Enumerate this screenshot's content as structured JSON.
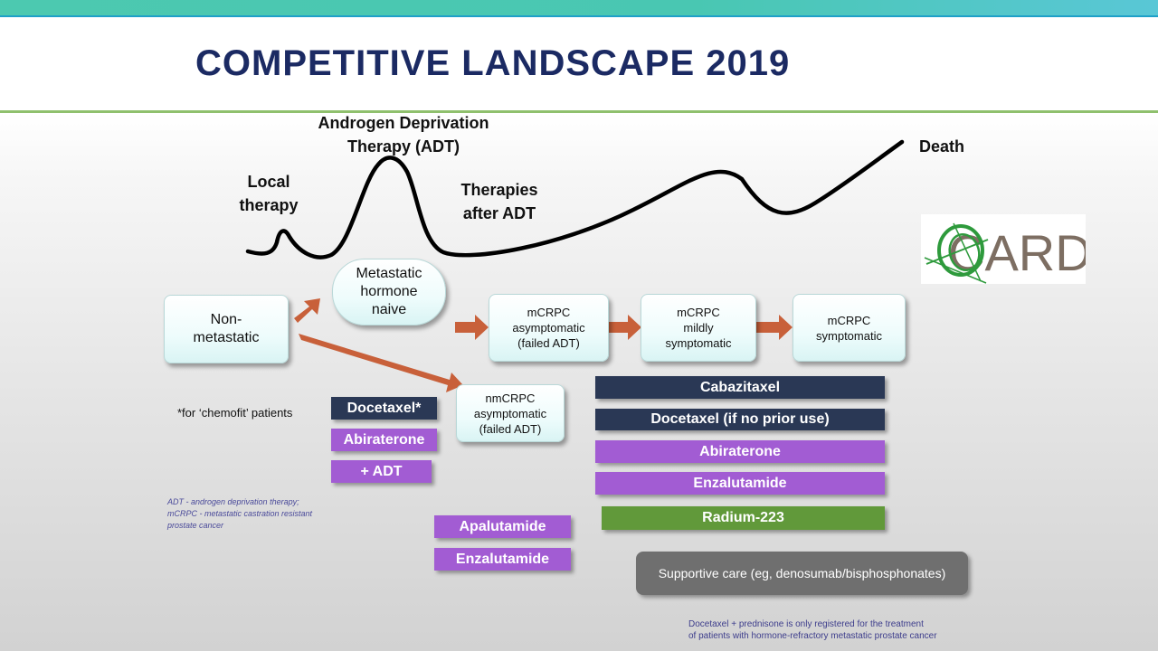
{
  "title": "COMPETITIVE LANDSCAPE 2019",
  "stages": {
    "local": [
      "Local",
      "therapy"
    ],
    "adt": [
      "Androgen Deprivation",
      "Therapy (ADT)"
    ],
    "after": [
      "Therapies",
      "after ADT"
    ],
    "death": "Death"
  },
  "logo": {
    "text": "CARD",
    "colors": {
      "green": "#2e9a3c",
      "gray": "#7d6e62"
    }
  },
  "boxes": {
    "nonmet": [
      "Non-",
      "metastatic"
    ],
    "mhn": [
      "Metastatic",
      "hormone",
      "naive"
    ],
    "mcrpc_asym": [
      "mCRPC",
      "asymptomatic",
      "(failed ADT)"
    ],
    "mcrpc_mild": [
      "mCRPC",
      "mildly",
      "symptomatic"
    ],
    "mcrpc_sym": [
      "mCRPC",
      "symptomatic"
    ],
    "nmcrpc": [
      "nmCRPC",
      "asymptomatic",
      "(failed ADT)"
    ]
  },
  "chemofit_note": "*for ‘chemofit’ patients",
  "bars": {
    "docetaxel_star": "Docetaxel*",
    "abiraterone_left": "Abiraterone",
    "plus_adt": "+ ADT",
    "apalutamide": "Apalutamide",
    "enzalutamide_left": "Enzalutamide",
    "cabazitaxel": "Cabazitaxel",
    "docetaxel_noprior": "Docetaxel (if no prior use)",
    "abiraterone_right": "Abiraterone",
    "enzalutamide_right": "Enzalutamide",
    "radium": "Radium-223",
    "supportive": "Supportive  care (eg, denosumab/bisphosphonates)"
  },
  "abbreviations": [
    "ADT - androgen deprivation therapy;",
    "mCRPC - metastatic castration resistant",
    "prostate cancer"
  ],
  "footer": [
    "Docetaxel + prednisone is only registered for the treatment",
    "of patients with hormone-refractory metastatic prostate cancer"
  ],
  "colors": {
    "title": "#1b2a63",
    "dark_bar": "#2a3855",
    "purple_bar": "#a25cd3",
    "green_bar": "#61993a",
    "gray_bar": "#6f6f6f",
    "arrow": "#c8603a",
    "accent_teal": "#4cc9b0",
    "accent_green_line": "#8fc06d"
  }
}
